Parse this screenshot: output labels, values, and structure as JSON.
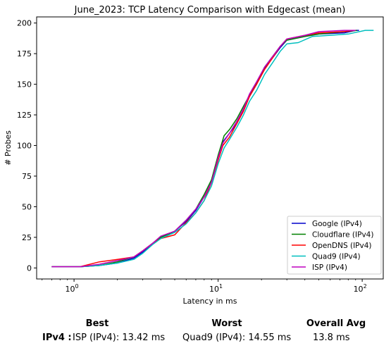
{
  "chart_data": {
    "type": "line",
    "title": "June_2023: TCP Latency Comparison with Edgecast (mean)",
    "xlabel": "Latency in ms",
    "ylabel": "# Probes",
    "xscale": "log",
    "xlim": [
      0.55,
      140
    ],
    "ylim": [
      -9,
      205
    ],
    "x_ticks": [
      1,
      10,
      100
    ],
    "x_tick_labels": [
      "10^0",
      "10^1",
      "10^2"
    ],
    "y_ticks": [
      0,
      25,
      50,
      75,
      100,
      125,
      150,
      175,
      200
    ],
    "grid": false,
    "legend_position": "lower-right",
    "series": [
      {
        "name": "Google (IPv4)",
        "color": "#0000cc",
        "points": [
          [
            0.7,
            1
          ],
          [
            1.1,
            1
          ],
          [
            1.5,
            2
          ],
          [
            2.0,
            4
          ],
          [
            2.6,
            8
          ],
          [
            3.0,
            13
          ],
          [
            3.5,
            20
          ],
          [
            4.0,
            25
          ],
          [
            5.0,
            30
          ],
          [
            6.0,
            38
          ],
          [
            7.0,
            47
          ],
          [
            8.0,
            58
          ],
          [
            9.0,
            70
          ],
          [
            10.0,
            90
          ],
          [
            10.8,
            103
          ],
          [
            12.0,
            110
          ],
          [
            13.5,
            118
          ],
          [
            15.0,
            130
          ],
          [
            16.5,
            140
          ],
          [
            18.5,
            150
          ],
          [
            21.0,
            163
          ],
          [
            24.0,
            172
          ],
          [
            27.0,
            180
          ],
          [
            30.0,
            186
          ],
          [
            40.0,
            189
          ],
          [
            50.0,
            191
          ],
          [
            75.0,
            192
          ],
          [
            90.0,
            194
          ],
          [
            95.0,
            194
          ]
        ]
      },
      {
        "name": "Cloudflare (IPv4)",
        "color": "#008000",
        "points": [
          [
            0.7,
            1
          ],
          [
            1.1,
            1
          ],
          [
            1.5,
            2
          ],
          [
            2.0,
            5
          ],
          [
            2.6,
            9
          ],
          [
            3.0,
            14
          ],
          [
            3.5,
            20
          ],
          [
            4.0,
            25
          ],
          [
            5.0,
            30
          ],
          [
            6.0,
            39
          ],
          [
            7.0,
            48
          ],
          [
            8.0,
            60
          ],
          [
            9.0,
            72
          ],
          [
            10.0,
            92
          ],
          [
            11.0,
            108
          ],
          [
            12.0,
            113
          ],
          [
            13.5,
            122
          ],
          [
            15.0,
            132
          ],
          [
            16.5,
            141
          ],
          [
            18.5,
            151
          ],
          [
            21.0,
            164
          ],
          [
            24.0,
            173
          ],
          [
            27.0,
            181
          ],
          [
            30.0,
            186
          ],
          [
            40.0,
            189
          ],
          [
            50.0,
            191
          ],
          [
            75.0,
            193
          ],
          [
            92.0,
            194
          ]
        ]
      },
      {
        "name": "OpenDNS (IPv4)",
        "color": "#ff0000",
        "points": [
          [
            0.7,
            1
          ],
          [
            1.1,
            1
          ],
          [
            1.5,
            5
          ],
          [
            2.0,
            7
          ],
          [
            2.6,
            9
          ],
          [
            3.0,
            14
          ],
          [
            3.5,
            20
          ],
          [
            4.0,
            24
          ],
          [
            5.0,
            27
          ],
          [
            6.0,
            37
          ],
          [
            7.0,
            45
          ],
          [
            8.0,
            55
          ],
          [
            9.0,
            70
          ],
          [
            10.0,
            88
          ],
          [
            10.8,
            100
          ],
          [
            12.0,
            107
          ],
          [
            13.5,
            118
          ],
          [
            15.0,
            128
          ],
          [
            16.5,
            140
          ],
          [
            18.5,
            150
          ],
          [
            21.0,
            162
          ],
          [
            24.0,
            172
          ],
          [
            27.0,
            181
          ],
          [
            30.0,
            187
          ],
          [
            40.0,
            190
          ],
          [
            50.0,
            192
          ],
          [
            75.0,
            193
          ],
          [
            88.0,
            194
          ]
        ]
      },
      {
        "name": "Quad9 (IPv4)",
        "color": "#00bfbf",
        "points": [
          [
            0.7,
            1
          ],
          [
            1.1,
            1
          ],
          [
            1.5,
            2
          ],
          [
            2.0,
            4
          ],
          [
            2.6,
            7
          ],
          [
            3.0,
            12
          ],
          [
            3.5,
            19
          ],
          [
            4.0,
            24
          ],
          [
            5.0,
            29
          ],
          [
            6.0,
            36
          ],
          [
            7.0,
            45
          ],
          [
            8.0,
            55
          ],
          [
            9.0,
            67
          ],
          [
            10.0,
            85
          ],
          [
            11.0,
            98
          ],
          [
            12.0,
            105
          ],
          [
            13.5,
            115
          ],
          [
            15.0,
            125
          ],
          [
            16.5,
            136
          ],
          [
            18.5,
            145
          ],
          [
            21.0,
            158
          ],
          [
            24.0,
            168
          ],
          [
            27.0,
            177
          ],
          [
            30.0,
            183
          ],
          [
            36.0,
            184
          ],
          [
            45.0,
            189
          ],
          [
            60.0,
            190
          ],
          [
            80.0,
            191
          ],
          [
            105.0,
            194
          ],
          [
            120.0,
            194
          ]
        ]
      },
      {
        "name": "ISP (IPv4)",
        "color": "#bf00bf",
        "points": [
          [
            0.7,
            1
          ],
          [
            1.1,
            1
          ],
          [
            1.5,
            3
          ],
          [
            2.0,
            6
          ],
          [
            2.6,
            9
          ],
          [
            3.0,
            14
          ],
          [
            3.5,
            20
          ],
          [
            4.0,
            26
          ],
          [
            5.0,
            30
          ],
          [
            6.0,
            39
          ],
          [
            7.0,
            48
          ],
          [
            8.0,
            58
          ],
          [
            9.0,
            70
          ],
          [
            10.0,
            90
          ],
          [
            10.8,
            102
          ],
          [
            12.0,
            110
          ],
          [
            13.5,
            120
          ],
          [
            15.0,
            130
          ],
          [
            16.5,
            142
          ],
          [
            18.5,
            152
          ],
          [
            21.0,
            164
          ],
          [
            24.0,
            173
          ],
          [
            27.0,
            181
          ],
          [
            30.0,
            187
          ],
          [
            40.0,
            190
          ],
          [
            50.0,
            193
          ],
          [
            75.0,
            194
          ],
          [
            90.0,
            194
          ]
        ]
      }
    ]
  },
  "summary": {
    "best_header": "Best",
    "worst_header": "Worst",
    "avg_header": "Overall Avg",
    "row_label": "IPv4 :",
    "best_value": "ISP (IPv4): 13.42 ms",
    "worst_value": "Quad9 (IPv4): 14.55 ms",
    "avg_value": "13.8 ms"
  }
}
